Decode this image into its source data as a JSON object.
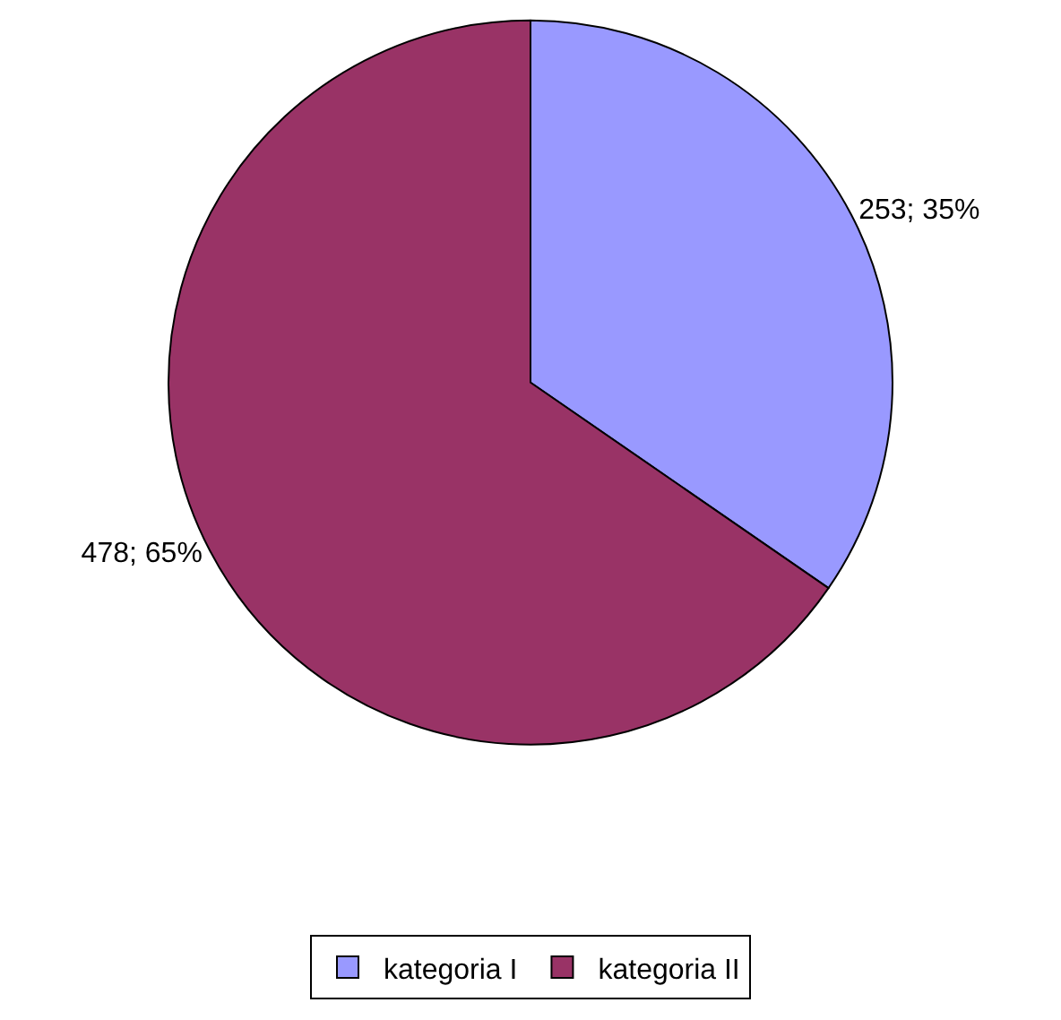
{
  "chart_data": {
    "type": "pie",
    "categories": [
      "kategoria I",
      "kategoria II"
    ],
    "values": [
      253,
      478
    ],
    "colors": [
      "#9999ff",
      "#993366"
    ],
    "value_labels": [
      "253; 35%",
      "478; 65%"
    ],
    "legend": "bottom"
  }
}
